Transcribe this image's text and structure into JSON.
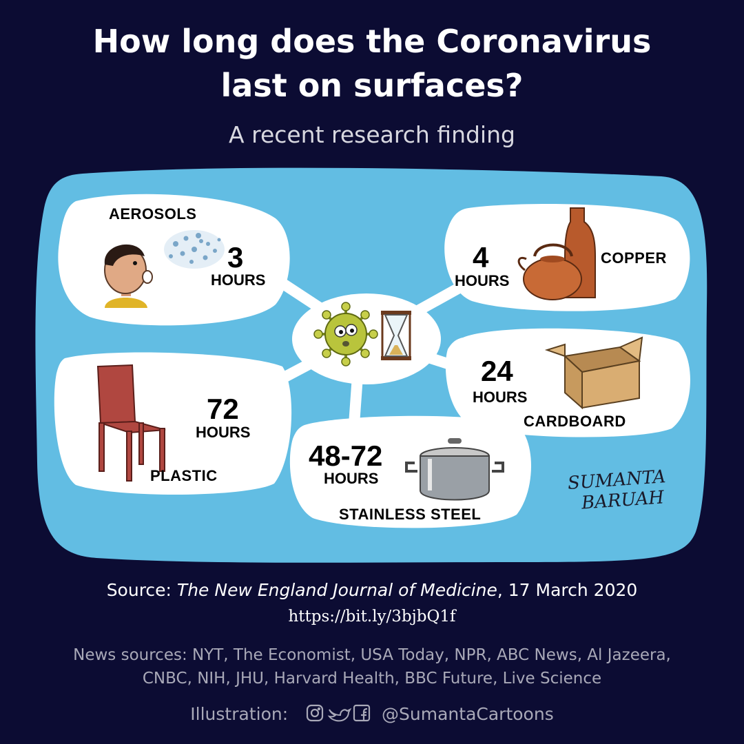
{
  "header": {
    "title_line1": "How long does the Coronavirus",
    "title_line2": "last on surfaces?",
    "subtitle": "A recent research finding"
  },
  "surfaces": [
    {
      "name": "AEROSOLS",
      "value": "3",
      "unit": "HOURS",
      "icon": "person-sneezing-icon"
    },
    {
      "name": "COPPER",
      "value": "4",
      "unit": "HOURS",
      "icon": "copper-kettle-icon"
    },
    {
      "name": "CARDBOARD",
      "value": "24",
      "unit": "HOURS",
      "icon": "cardboard-box-icon"
    },
    {
      "name": "STAINLESS STEEL",
      "value": "48-72",
      "unit": "HOURS",
      "icon": "steel-pot-icon"
    },
    {
      "name": "PLASTIC",
      "value": "72",
      "unit": "HOURS",
      "icon": "plastic-chair-icon"
    }
  ],
  "center": {
    "icons": [
      "virus-icon",
      "hourglass-icon"
    ]
  },
  "signature": {
    "line1": "SUMANTA",
    "line2": "BARUAH"
  },
  "footer": {
    "source_prefix": "Source: ",
    "source_journal": "The New England Journal of Medicine",
    "source_date": ", 17 March 2020",
    "url": "https://bit.ly/3bjbQ1f",
    "news_line1": "News sources: NYT, The Economist, USA Today, NPR, ABC News, Al Jazeera,",
    "news_line2": "CNBC, NIH, JHU, Harvard Health, BBC Future, Live Science",
    "illustration_label": "Illustration:",
    "handle": "@SumantaCartoons"
  },
  "colors": {
    "background": "#0c0c33",
    "panel": "#62bde3",
    "bubble": "#ffffff"
  }
}
